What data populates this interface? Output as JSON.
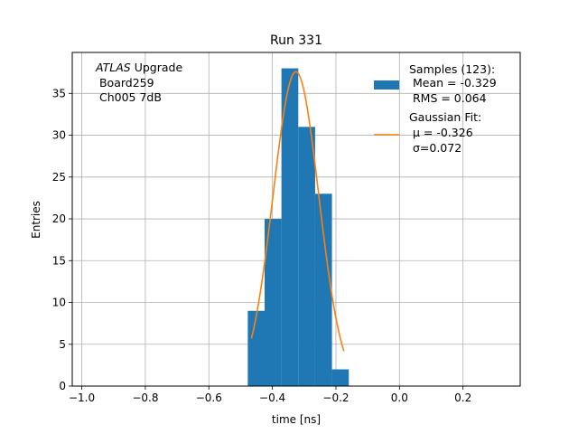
{
  "chart_data": {
    "type": "bar",
    "title": "Run 331",
    "xlabel": "time [ns]",
    "ylabel": "Entries",
    "xlim": [
      -1.03,
      0.38
    ],
    "ylim": [
      0,
      39.9
    ],
    "grid": true,
    "xticks": [
      -1.0,
      -0.8,
      -0.6,
      -0.4,
      -0.2,
      0.0,
      0.2
    ],
    "xtick_labels": [
      "−1.0",
      "−0.8",
      "−0.6",
      "−0.4",
      "−0.2",
      "0.0",
      "0.2"
    ],
    "yticks": [
      0,
      5,
      10,
      15,
      20,
      25,
      30,
      35
    ],
    "ytick_labels": [
      "0",
      "5",
      "10",
      "15",
      "20",
      "25",
      "30",
      "35"
    ],
    "histogram": {
      "name": "Samples",
      "color": "#1f77b4",
      "bin_edges": [
        -0.4775,
        -0.4245,
        -0.3715,
        -0.3185,
        -0.2655,
        -0.2125,
        -0.1595
      ],
      "counts": [
        9,
        20,
        38,
        31,
        23,
        2
      ]
    },
    "fit": {
      "name": "Gaussian Fit",
      "color": "#ff7f0e",
      "mu": -0.326,
      "sigma": 0.072,
      "amplitude": 37.6,
      "x_range": [
        -0.466,
        -0.175
      ]
    },
    "legend": {
      "placement": "top-right",
      "entries": [
        {
          "series": "histogram",
          "lines": [
            "Samples (123):",
            " Mean = -0.329",
            " RMS = 0.064"
          ]
        },
        {
          "series": "fit",
          "lines": [
            "Gaussian Fit:",
            " μ = -0.326",
            " σ=0.072"
          ]
        }
      ]
    },
    "annotation": {
      "placement": "top-left",
      "experiment": "ATLAS",
      "experiment_suffix": " Upgrade",
      "lines": [
        " Board259",
        " Ch005 7dB"
      ]
    }
  }
}
